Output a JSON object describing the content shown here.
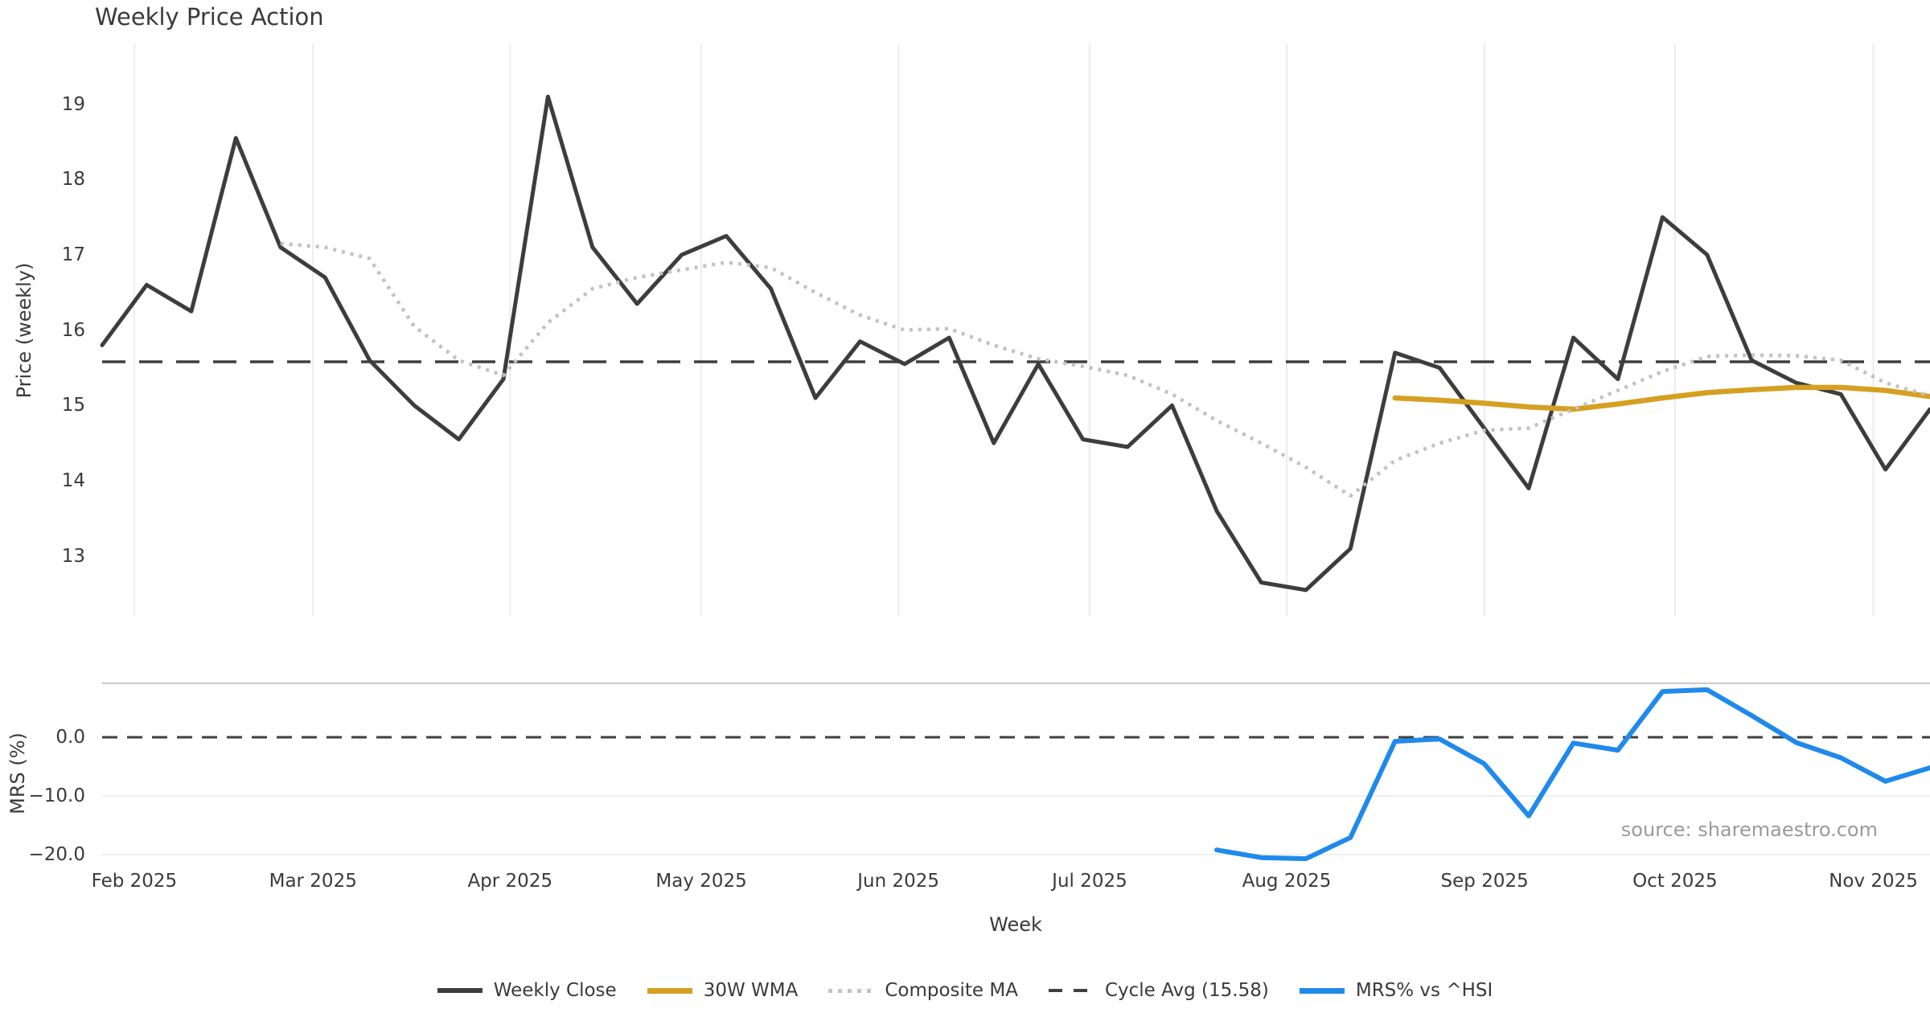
{
  "title": "Weekly Price Action",
  "source_note": "source: sharemaestro.com",
  "chart_data": {
    "type": "line",
    "title": "Weekly Price Action",
    "xlabel": "Week",
    "x_tick_labels": [
      "Feb 2025",
      "Mar 2025",
      "Apr 2025",
      "May 2025",
      "Jun 2025",
      "Jul 2025",
      "Aug 2025",
      "Sep 2025",
      "Oct 2025",
      "Nov 2025"
    ],
    "x_tick_week_positions": [
      0.72,
      4.73,
      9.15,
      13.44,
      17.86,
      22.15,
      26.57,
      31.01,
      35.28,
      39.73
    ],
    "weeks_total": 42,
    "top_panel": {
      "ylabel": "Price (weekly)",
      "ylim": [
        12.2,
        19.8
      ],
      "yticks": [
        19,
        18,
        17,
        16,
        15,
        14,
        13
      ],
      "grid": "vertical-months",
      "cycle_avg": 15.58,
      "series": [
        {
          "name": "Weekly Close",
          "style": "solid-dark",
          "start_week": 0,
          "values": [
            15.8,
            16.6,
            16.25,
            18.55,
            17.1,
            16.7,
            15.6,
            15.0,
            14.55,
            15.35,
            19.1,
            17.1,
            16.35,
            17.0,
            17.25,
            16.55,
            15.1,
            15.85,
            15.55,
            15.9,
            14.5,
            15.55,
            14.55,
            14.45,
            15.0,
            13.6,
            12.65,
            12.55,
            13.1,
            15.7,
            15.5,
            14.7,
            13.9,
            15.9,
            15.35,
            17.5,
            17.0,
            15.6,
            15.3,
            15.15,
            14.15,
            14.95
          ]
        },
        {
          "name": "30W WMA",
          "style": "solid-gold",
          "start_week": 29,
          "values": [
            15.1,
            15.07,
            15.03,
            14.98,
            14.95,
            15.02,
            15.1,
            15.17,
            15.21,
            15.24,
            15.24,
            15.2,
            15.12
          ]
        },
        {
          "name": "Composite MA",
          "style": "dotted-gray",
          "start_week": 4,
          "values": [
            17.15,
            17.1,
            16.95,
            16.05,
            15.6,
            15.4,
            16.1,
            16.55,
            16.7,
            16.8,
            16.9,
            16.83,
            16.5,
            16.2,
            16.0,
            16.02,
            15.8,
            15.62,
            15.52,
            15.4,
            15.15,
            14.8,
            14.5,
            14.18,
            13.8,
            14.27,
            14.5,
            14.67,
            14.7,
            14.95,
            15.2,
            15.45,
            15.65,
            15.67,
            15.66,
            15.6,
            15.3,
            15.13
          ]
        },
        {
          "name": "Cycle Avg (15.58)",
          "style": "dashed-dark",
          "line_value": 15.58
        }
      ]
    },
    "bottom_panel": {
      "ylabel": "MRS (%)",
      "ylim": [
        -21.6,
        9.2
      ],
      "yticks": [
        0.0,
        -10.0,
        -20.0
      ],
      "ytick_labels": [
        "0.0",
        "−10.0",
        "−20.0"
      ],
      "zero_line": 0.0,
      "grid": "horizontal",
      "series": [
        {
          "name": "MRS% vs ^HSI",
          "style": "solid-blue",
          "start_week": 25,
          "values": [
            -19.2,
            -20.5,
            -20.7,
            -17.1,
            -0.7,
            -0.3,
            -4.5,
            -13.4,
            -1.0,
            -2.2,
            7.8,
            8.1,
            3.7,
            -0.9,
            -3.5,
            -7.5,
            -5.2
          ]
        }
      ]
    },
    "legend": [
      {
        "label": "Weekly Close",
        "style": "solid-dark"
      },
      {
        "label": "30W WMA",
        "style": "solid-gold"
      },
      {
        "label": "Composite MA",
        "style": "dotted-gray"
      },
      {
        "label": "Cycle Avg (15.58)",
        "style": "dashed-dark"
      },
      {
        "label": "MRS% vs ^HSI",
        "style": "solid-blue"
      }
    ],
    "colors": {
      "dark": "#3d3d3d",
      "gold": "#d5a021",
      "dotted": "#c2c2c2",
      "dashed": "#3f3f3f",
      "blue": "#2089ec",
      "grid": "#ececec",
      "panel_border": "#c9c9c9",
      "text": "#3a3a3a",
      "muted": "#9a9a9a"
    }
  }
}
